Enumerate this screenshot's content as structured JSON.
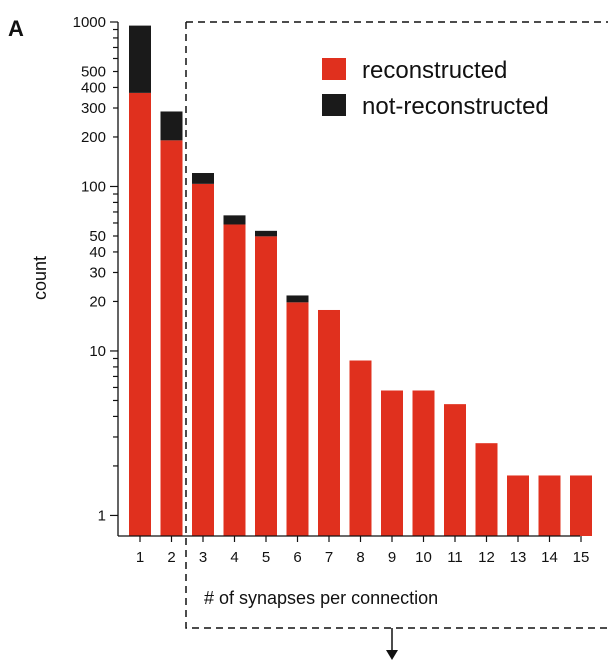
{
  "panel_label": "A",
  "chart_data": {
    "type": "bar",
    "stacked": true,
    "yscale": "log",
    "ylim": [
      0.75,
      1000
    ],
    "xlabel": "# of synapses per connection",
    "ylabel": "count",
    "categories": [
      "1",
      "2",
      "3",
      "4",
      "5",
      "6",
      "7",
      "8",
      "9",
      "10",
      "11",
      "12",
      "13",
      "14",
      "15"
    ],
    "series": [
      {
        "name": "reconstructed",
        "color": "#e0301e",
        "values": [
          370,
          190,
          103,
          58,
          49,
          19,
          17,
          8,
          5,
          5,
          4,
          2,
          1,
          1,
          1
        ]
      },
      {
        "name": "not-reconstructed",
        "color": "#1a1a1a",
        "values": [
          580,
          95,
          17,
          8,
          4,
          2,
          0,
          0,
          0,
          0,
          0,
          0,
          0,
          0,
          0
        ]
      }
    ],
    "yticks": [
      {
        "v": 1000,
        "label": "1000"
      },
      {
        "v": 500,
        "label": "500"
      },
      {
        "v": 400,
        "label": "400"
      },
      {
        "v": 300,
        "label": "300"
      },
      {
        "v": 200,
        "label": "200"
      },
      {
        "v": 100,
        "label": "100"
      },
      {
        "v": 50,
        "label": "50"
      },
      {
        "v": 40,
        "label": "40"
      },
      {
        "v": 30,
        "label": "30"
      },
      {
        "v": 20,
        "label": "20"
      },
      {
        "v": 10,
        "label": "10"
      },
      {
        "v": 1,
        "label": "1"
      }
    ],
    "legend_position": "top-right",
    "annotation": "dashed box around bars 3–15 with downward arrow"
  }
}
